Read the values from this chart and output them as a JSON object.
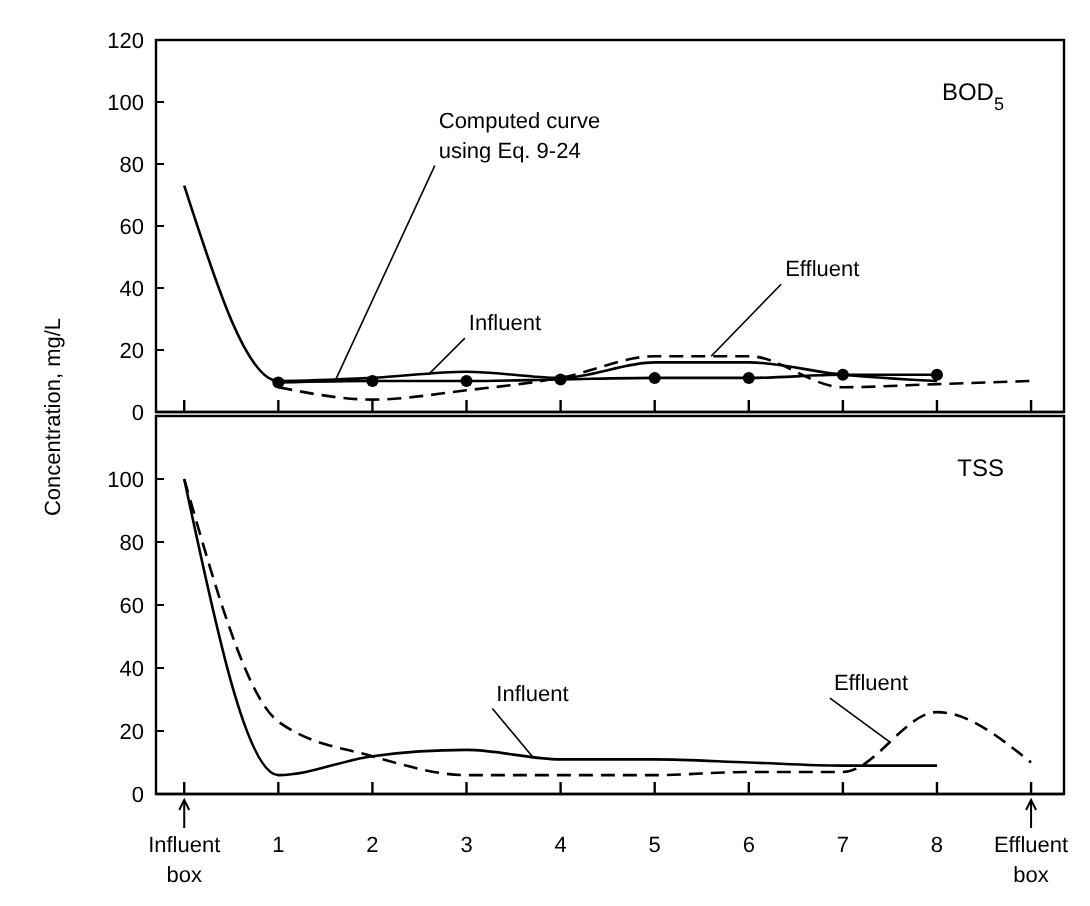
{
  "chart_data": [
    {
      "type": "line",
      "title": "BOD$_{5}$",
      "ylabel": "Concentration, mg/L",
      "xlim": [
        -0.3,
        9.35
      ],
      "ylim": [
        0,
        120
      ],
      "yticks": [
        0,
        20,
        40,
        60,
        80,
        100,
        120
      ],
      "xticks": [
        0,
        1,
        2,
        3,
        4,
        5,
        6,
        7,
        8,
        9
      ],
      "tick_labels": "y",
      "series": [
        {
          "name": "Computed curve using Eq. 9-24",
          "color": "#000000",
          "marker": "circle",
          "line_style": "solid",
          "x": [
            1,
            2,
            3,
            4,
            5,
            6,
            7,
            8
          ],
          "values": [
            9.5,
            10,
            10,
            10.5,
            11,
            11,
            12,
            12
          ]
        },
        {
          "name": "Influent",
          "color": "#000000",
          "marker": "none",
          "line_style": "solid",
          "x": [
            0,
            1,
            2,
            3,
            4,
            5,
            6,
            7,
            8
          ],
          "values": [
            73,
            10,
            11,
            13,
            11,
            16,
            16,
            12,
            10
          ]
        },
        {
          "name": "Effluent",
          "color": "#000000",
          "marker": "none",
          "line_style": "dashed",
          "x": [
            1,
            2,
            3,
            4,
            5,
            6,
            7,
            8,
            9
          ],
          "values": [
            8,
            4,
            7,
            11,
            18,
            18,
            8,
            9,
            10
          ]
        }
      ]
    },
    {
      "type": "line",
      "title": "TSS",
      "xlim": [
        -0.3,
        9.35
      ],
      "ylim": [
        0,
        120
      ],
      "yticks": [
        0,
        20,
        40,
        60,
        80,
        100
      ],
      "xticks": [
        {
          "value": 0,
          "label": "Influent box"
        },
        1,
        2,
        3,
        4,
        5,
        6,
        7,
        8,
        {
          "value": 9,
          "label": "Effluent box"
        }
      ],
      "series": [
        {
          "name": "Influent",
          "color": "#000000",
          "marker": "none",
          "line_style": "solid",
          "x": [
            0,
            1,
            2,
            3,
            4,
            5,
            6,
            7,
            8
          ],
          "values": [
            100,
            6,
            12,
            14,
            11,
            11,
            10,
            9,
            9
          ]
        },
        {
          "name": "Effluent",
          "color": "#000000",
          "marker": "none",
          "line_style": "dashed",
          "x": [
            0,
            1,
            2,
            3,
            4,
            5,
            6,
            7,
            8,
            9
          ],
          "values": [
            100,
            23,
            12,
            6,
            6,
            6,
            7,
            7,
            26,
            10
          ]
        }
      ]
    }
  ]
}
